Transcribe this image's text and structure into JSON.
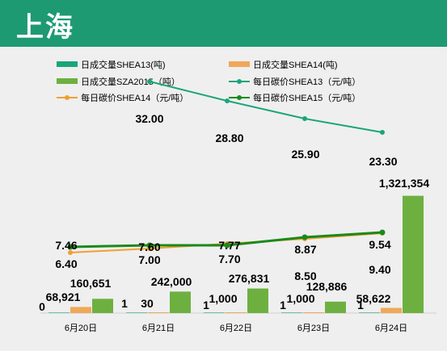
{
  "header": {
    "title": "上海"
  },
  "chart_data": {
    "type": "bar+line",
    "categories": [
      "6月20日",
      "6月21日",
      "6月22日",
      "6月23日",
      "6月24日"
    ],
    "legend": [
      {
        "name": "日成交量SHEA13(吨)",
        "color": "#1aa57b",
        "kind": "bar"
      },
      {
        "name": "日成交量SHEA14(吨)",
        "color": "#f0a858",
        "kind": "bar"
      },
      {
        "name": "日成交量SZA2015（吨）",
        "color": "#6db040",
        "kind": "bar"
      },
      {
        "name": "每日碳价SHEA13（元/吨）",
        "color": "#1aa57b",
        "kind": "line"
      },
      {
        "name": "每日碳价SHEA14（元/吨）",
        "color": "#f0a030",
        "kind": "line"
      },
      {
        "name": "每日碳价SHEA15（元/吨）",
        "color": "#1a8a1a",
        "kind": "line"
      }
    ],
    "bar_series": [
      {
        "name": "日成交量SHEA13(吨)",
        "values": [
          0,
          1,
          1,
          1,
          1
        ],
        "labels": [
          "0",
          "1",
          "1",
          "1",
          "1"
        ],
        "color": "#1aa57b"
      },
      {
        "name": "日成交量SHEA14(吨)",
        "values": [
          68921,
          30,
          1000,
          1000,
          58622
        ],
        "labels": [
          "68,921",
          "30",
          "1,000",
          "1,000",
          "58,622"
        ],
        "color": "#f0a858"
      },
      {
        "name": "日成交量SZA2015（吨）",
        "values": [
          160651,
          242000,
          276831,
          128886,
          1321354
        ],
        "labels": [
          "160,651",
          "242,000",
          "276,831",
          "128,886",
          "1,321,354"
        ],
        "color": "#6db040"
      }
    ],
    "line_series": [
      {
        "name": "每日碳价SHEA13（元/吨）",
        "values": [
          null,
          32.0,
          28.8,
          25.9,
          23.3
        ],
        "labels": [
          "",
          "32.00",
          "28.80",
          "25.90",
          "23.30"
        ],
        "color": "#1aa57b"
      },
      {
        "name": "每日碳价SHEA14（元/吨）",
        "values": [
          6.4,
          7.0,
          7.7,
          8.5,
          9.4
        ],
        "labels": [
          "6.40",
          "7.00",
          "7.70",
          "8.50",
          "9.40"
        ],
        "color": "#f0a030"
      },
      {
        "name": "每日碳价SHEA15（元/吨）",
        "values": [
          7.46,
          7.6,
          7.77,
          8.87,
          9.54
        ],
        "labels": [
          "7.46",
          "7.60",
          "7.77",
          "8.87",
          "9.54"
        ],
        "color": "#1a8a1a"
      }
    ],
    "bar_ylim": [
      0,
      1400000
    ],
    "line_ylim": [
      0,
      40
    ],
    "grid": false,
    "legend_placement": "top"
  }
}
